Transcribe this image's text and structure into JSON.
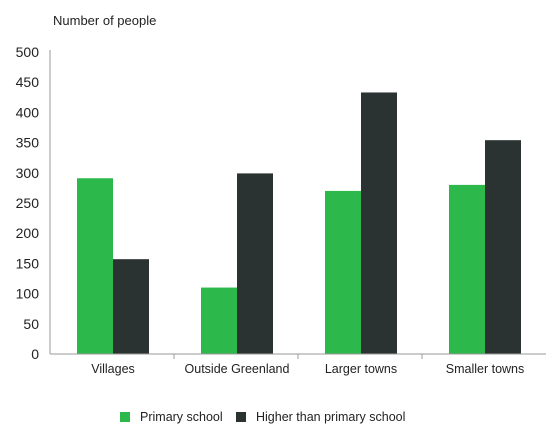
{
  "chart_data": {
    "type": "bar",
    "title": "",
    "xlabel": "",
    "ylabel": "Number of people",
    "ylim": [
      0,
      500
    ],
    "yticks": [
      0,
      50,
      100,
      150,
      200,
      250,
      300,
      350,
      400,
      450,
      500
    ],
    "grid": false,
    "legend_position": "bottom",
    "categories": [
      "Villages",
      "Outside Greenland",
      "Larger towns",
      "Smaller towns"
    ],
    "series": [
      {
        "name": "Primary school",
        "color": "#2db84b",
        "values": [
          291,
          110,
          270,
          280
        ]
      },
      {
        "name": "Higher than primary school",
        "color": "#2b3332",
        "values": [
          157,
          299,
          433,
          354
        ]
      }
    ]
  }
}
